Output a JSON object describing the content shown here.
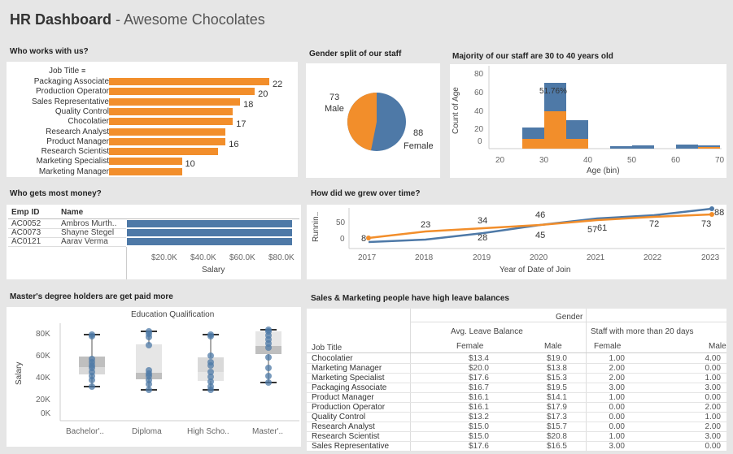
{
  "header": {
    "title_bold": "HR Dashboard",
    "title_rest": " - Awesome Chocolates"
  },
  "panel_titles": {
    "who_works": "Who works with us?",
    "gender": "Gender split of our staff",
    "age": "Majority of our staff are 30 to 40 years old",
    "money": "Who gets most money?",
    "growth": "How did we grew over time?",
    "masters": "Master's degree holders are get paid more",
    "leave": "Sales & Marketing people have high leave balances"
  },
  "job_title_header": "Job Title",
  "job_titles": [
    {
      "label": "Packaging Associate",
      "value": 22,
      "value_label": "22"
    },
    {
      "label": "Production Operator",
      "value": 20,
      "value_label": "20"
    },
    {
      "label": "Sales Representative",
      "value": 18,
      "value_label": "18"
    },
    {
      "label": "Quality Control",
      "value": 17,
      "value_label": ""
    },
    {
      "label": "Chocolatier",
      "value": 17,
      "value_label": "17"
    },
    {
      "label": "Research Analyst",
      "value": 16,
      "value_label": ""
    },
    {
      "label": "Product Manager",
      "value": 16,
      "value_label": "16"
    },
    {
      "label": "Research Scientist",
      "value": 15,
      "value_label": ""
    },
    {
      "label": "Marketing Specialist",
      "value": 10,
      "value_label": "10"
    },
    {
      "label": "Marketing Manager",
      "value": 10,
      "value_label": ""
    }
  ],
  "gender": {
    "male_value": "73",
    "male_label": "Male",
    "female_value": "88",
    "female_label": "Female",
    "colors": {
      "male": "#f28e2b",
      "female": "#4e79a7"
    }
  },
  "age_hist": {
    "ylabel": "Count of Age",
    "xlabel": "Age (bin)",
    "yticks": [
      "80",
      "60",
      "40",
      "20",
      "0"
    ],
    "xticks": [
      "20",
      "30",
      "40",
      "50",
      "60",
      "70"
    ],
    "annotation": "51.76%"
  },
  "salary": {
    "headers": {
      "id": "Emp ID",
      "name": "Name"
    },
    "rows": [
      {
        "id": "AC0052",
        "name": "Ambros Murth..",
        "salary": 84000
      },
      {
        "id": "AC0073",
        "name": "Shayne Stegel",
        "salary": 84000
      },
      {
        "id": "AC0121",
        "name": "Aarav Verma",
        "salary": 84000
      }
    ],
    "xticks": [
      "$20.0K",
      "$40.0K",
      "$60.0K",
      "$80.0K"
    ],
    "xlabel": "Salary"
  },
  "growth": {
    "ylabel": "Runnin..",
    "yticks": [
      "50",
      "0"
    ],
    "years": [
      "2017",
      "2018",
      "2019",
      "2020",
      "2021",
      "2022",
      "2023"
    ],
    "xlabel": "Year of Date of Join",
    "labels_top": [
      "8",
      "23",
      "34",
      "46",
      "61",
      "72",
      "73"
    ],
    "labels_bottom": [
      "28",
      "45",
      "57"
    ],
    "label_88": "88"
  },
  "education": {
    "header": "Education Qualification",
    "ylabel": "Salary",
    "yticks": [
      "80K",
      "60K",
      "40K",
      "20K",
      "0K"
    ],
    "categories": [
      "Bachelor'..",
      "Diploma",
      "High Scho..",
      "Master'.."
    ]
  },
  "leave": {
    "gender_header": "Gender",
    "group1": "Avg. Leave Balance",
    "group2": "Staff with more than 20 days",
    "job_title_header": "Job Title",
    "sub_female": "Female",
    "sub_male": "Male",
    "rows": [
      {
        "job": "Chocolatier",
        "af": "$13.4",
        "am": "$19.0",
        "sf": "1.00",
        "sm": "4.00"
      },
      {
        "job": "Marketing Manager",
        "af": "$20.0",
        "am": "$13.8",
        "sf": "2.00",
        "sm": "0.00"
      },
      {
        "job": "Marketing Specialist",
        "af": "$17.6",
        "am": "$15.3",
        "sf": "2.00",
        "sm": "1.00"
      },
      {
        "job": "Packaging Associate",
        "af": "$16.7",
        "am": "$19.5",
        "sf": "3.00",
        "sm": "3.00"
      },
      {
        "job": "Product Manager",
        "af": "$16.1",
        "am": "$14.1",
        "sf": "1.00",
        "sm": "0.00"
      },
      {
        "job": "Production Operator",
        "af": "$16.1",
        "am": "$17.9",
        "sf": "0.00",
        "sm": "2.00"
      },
      {
        "job": "Quality Control",
        "af": "$13.2",
        "am": "$17.3",
        "sf": "0.00",
        "sm": "1.00"
      },
      {
        "job": "Research Analyst",
        "af": "$15.0",
        "am": "$15.7",
        "sf": "0.00",
        "sm": "2.00"
      },
      {
        "job": "Research Scientist",
        "af": "$15.0",
        "am": "$20.8",
        "sf": "1.00",
        "sm": "3.00"
      },
      {
        "job": "Sales Representative",
        "af": "$17.6",
        "am": "$16.5",
        "sf": "3.00",
        "sm": "0.00"
      }
    ]
  }
}
